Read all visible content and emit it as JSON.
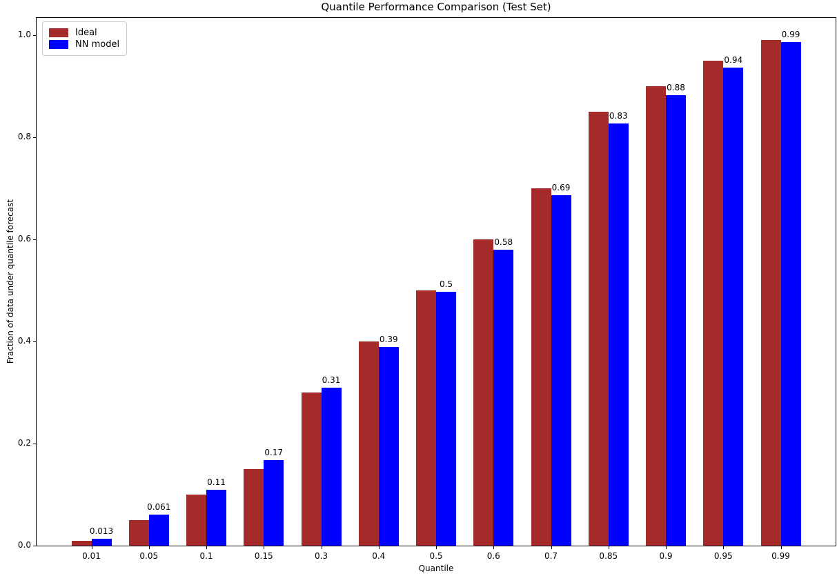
{
  "chart_data": {
    "type": "bar",
    "title": "Quantile Performance Comparison (Test Set)",
    "xlabel": "Quantile",
    "ylabel": "Fraction of data under quantile forecast",
    "categories": [
      "0.01",
      "0.05",
      "0.1",
      "0.15",
      "0.3",
      "0.4",
      "0.5",
      "0.6",
      "0.7",
      "0.85",
      "0.9",
      "0.95",
      "0.99"
    ],
    "series": [
      {
        "name": "Ideal",
        "color": "#A52A2A",
        "values": [
          0.01,
          0.05,
          0.1,
          0.15,
          0.3,
          0.4,
          0.5,
          0.6,
          0.7,
          0.85,
          0.9,
          0.95,
          0.99
        ]
      },
      {
        "name": "NN model",
        "color": "#0000FF",
        "values": [
          0.013,
          0.061,
          0.11,
          0.168,
          0.31,
          0.389,
          0.497,
          0.58,
          0.687,
          0.827,
          0.882,
          0.937,
          0.987
        ],
        "labels": [
          "0.013",
          "0.061",
          "0.11",
          "0.17",
          "0.31",
          "0.39",
          "0.5",
          "0.58",
          "0.69",
          "0.83",
          "0.88",
          "0.94",
          "0.99"
        ]
      }
    ],
    "yticks": [
      "0.0",
      "0.2",
      "0.4",
      "0.6",
      "0.8",
      "1.0"
    ],
    "ylim": [
      0,
      1.0365
    ],
    "grid": false,
    "legend_position": "upper left",
    "background_color": "#ffffff",
    "axis_color": "#000000"
  }
}
